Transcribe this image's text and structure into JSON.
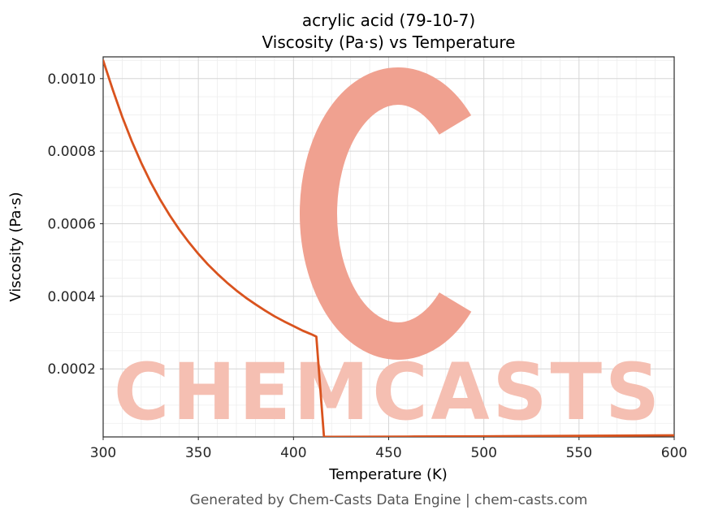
{
  "page": {
    "title_line1": "acrylic acid (79-10-7)",
    "title_line2": "Viscosity (Pa·s) vs Temperature",
    "footer": "Generated by Chem-Casts Data Engine | chem-casts.com",
    "watermark_text": "CHEMCASTS"
  },
  "watermark": {
    "text_color": "#f5bfb2",
    "logo_color": "#f0a190"
  },
  "chart_data": {
    "type": "line",
    "title": "acrylic acid (79-10-7)\nViscosity (Pa·s) vs Temperature",
    "xlabel": "Temperature (K)",
    "ylabel": "Viscosity (Pa·s)",
    "xlim": [
      300,
      600
    ],
    "ylim": [
      1.25e-05,
      0.00106
    ],
    "xticks": [
      300,
      350,
      400,
      450,
      500,
      550,
      600
    ],
    "yticks": [
      0.0002,
      0.0004,
      0.0006,
      0.0008,
      0.001
    ],
    "ytick_labels": [
      "0.0002",
      "0.0004",
      "0.0006",
      "0.0008",
      "0.0010"
    ],
    "grid": true,
    "legend_position": "none",
    "line_color": "#d9531e",
    "grid_major_color": "#d6d6d6",
    "grid_minor_color": "#ededed",
    "frame_color": "#2b2b2b",
    "series": [
      {
        "name": "viscosity",
        "x": [
          300,
          305,
          310,
          315,
          320,
          325,
          330,
          335,
          340,
          345,
          350,
          355,
          360,
          365,
          370,
          375,
          380,
          385,
          390,
          395,
          400,
          405,
          410,
          412,
          416,
          420,
          440,
          460,
          480,
          500,
          520,
          540,
          560,
          580,
          600
        ],
        "y": [
          0.00105,
          0.00097,
          0.000895,
          0.000828,
          0.000768,
          0.000714,
          0.000666,
          0.000623,
          0.000584,
          0.000549,
          0.000517,
          0.000488,
          0.000462,
          0.000438,
          0.000416,
          0.000396,
          0.000378,
          0.000361,
          0.000345,
          0.000331,
          0.000318,
          0.000305,
          0.000294,
          0.000289,
          1.3e-05,
          1.28e-05,
          1.31e-05,
          1.34e-05,
          1.38e-05,
          1.42e-05,
          1.47e-05,
          1.52e-05,
          1.57e-05,
          1.63e-05,
          1.7e-05
        ]
      }
    ]
  }
}
